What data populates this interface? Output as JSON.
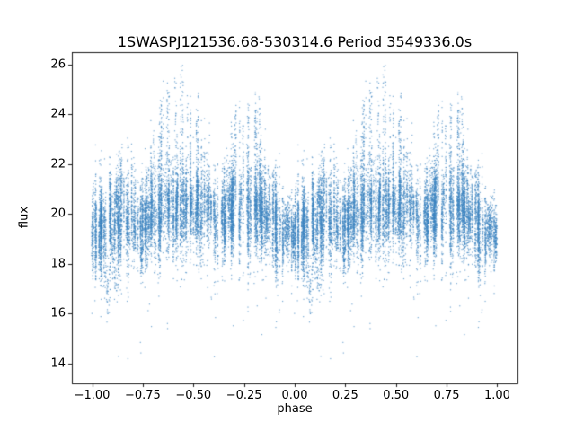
{
  "chart_data": {
    "type": "scatter",
    "title": "1SWASPJ121536.68-530314.6 Period 3549336.0s",
    "xlabel": "phase",
    "ylabel": "flux",
    "xlim": [
      -1.1,
      1.1
    ],
    "ylim": [
      13.2,
      26.5
    ],
    "x_ticks": [
      -1.0,
      -0.75,
      -0.5,
      -0.25,
      0.0,
      0.25,
      0.5,
      0.75,
      1.0
    ],
    "x_tick_labels": [
      "−1.00",
      "−0.75",
      "−0.50",
      "−0.25",
      "0.00",
      "0.25",
      "0.50",
      "0.75",
      "1.00"
    ],
    "y_ticks": [
      14,
      16,
      18,
      20,
      22,
      24,
      26
    ],
    "y_tick_labels": [
      "14",
      "16",
      "18",
      "20",
      "22",
      "24",
      "26"
    ],
    "grid": false,
    "legend": null,
    "marker_color": "#3d85c0",
    "marker_alpha": 0.7,
    "marker_size_px": 1.2,
    "phase_copies_offsets": [
      -1,
      0
    ],
    "profile": [
      {
        "phase": 0.0,
        "mean": 19.4,
        "std": 0.55,
        "max": 21.5
      },
      {
        "phase": 0.05,
        "mean": 19.2,
        "std": 0.6,
        "max": 21.5
      },
      {
        "phase": 0.1,
        "mean": 19.3,
        "std": 0.7,
        "max": 22.0
      },
      {
        "phase": 0.15,
        "mean": 19.6,
        "std": 0.8,
        "max": 22.5
      },
      {
        "phase": 0.2,
        "mean": 19.8,
        "std": 0.85,
        "max": 23.0
      },
      {
        "phase": 0.25,
        "mean": 19.6,
        "std": 0.8,
        "max": 22.0
      },
      {
        "phase": 0.3,
        "mean": 19.9,
        "std": 0.9,
        "max": 24.0
      },
      {
        "phase": 0.35,
        "mean": 20.2,
        "std": 1.0,
        "max": 26.0
      },
      {
        "phase": 0.4,
        "mean": 20.3,
        "std": 1.0,
        "max": 25.8
      },
      {
        "phase": 0.45,
        "mean": 20.2,
        "std": 1.0,
        "max": 26.0
      },
      {
        "phase": 0.5,
        "mean": 20.3,
        "std": 0.95,
        "max": 24.8
      },
      {
        "phase": 0.55,
        "mean": 20.0,
        "std": 0.9,
        "max": 26.0
      },
      {
        "phase": 0.6,
        "mean": 19.8,
        "std": 0.85,
        "max": 23.0
      },
      {
        "phase": 0.65,
        "mean": 19.7,
        "std": 0.8,
        "max": 22.5
      },
      {
        "phase": 0.7,
        "mean": 20.0,
        "std": 0.9,
        "max": 25.5
      },
      {
        "phase": 0.75,
        "mean": 20.1,
        "std": 0.9,
        "max": 24.8
      },
      {
        "phase": 0.8,
        "mean": 20.0,
        "std": 0.9,
        "max": 25.5
      },
      {
        "phase": 0.85,
        "mean": 19.9,
        "std": 0.85,
        "max": 24.0
      },
      {
        "phase": 0.9,
        "mean": 19.5,
        "std": 0.7,
        "max": 22.0
      },
      {
        "phase": 0.95,
        "mean": 19.3,
        "std": 0.6,
        "max": 21.5
      },
      {
        "phase": 1.0,
        "mean": 19.4,
        "std": 0.55,
        "max": 21.5
      }
    ],
    "low_clusters": [
      {
        "phase": 0.08,
        "flux": 17.0,
        "spread": 0.6,
        "n": 45
      },
      {
        "phase": 0.12,
        "flux": 17.6,
        "spread": 0.4,
        "n": 30
      }
    ],
    "generation": {
      "seed": 1337,
      "n_striations": 240,
      "pts_min": 20,
      "pts_max": 95,
      "spike_prob": 0.3,
      "low_outlier_frac": 0.0015,
      "low_outlier_min": 14.0,
      "low_outlier_max": 17.0
    }
  }
}
